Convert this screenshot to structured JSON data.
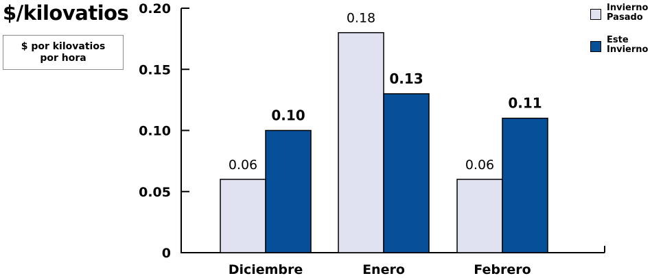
{
  "chart_data": {
    "type": "bar",
    "title": "$/kilovatios",
    "unit_label": [
      "$ por kilovatios",
      "por hora"
    ],
    "categories": [
      "Diciembre",
      "Enero",
      "Febrero"
    ],
    "series": [
      {
        "name": [
          "Invierno",
          "Pasado"
        ],
        "values": [
          0.06,
          0.18,
          0.06
        ],
        "labels": [
          "0.06",
          "0.18",
          "0.06"
        ],
        "color": "#e0e2f2",
        "label_style": "normal"
      },
      {
        "name": [
          "Este",
          "Invierno"
        ],
        "values": [
          0.1,
          0.13,
          0.11
        ],
        "labels": [
          "0.10",
          "0.13",
          "0.11"
        ],
        "color": "#06509a",
        "label_style": "bold"
      }
    ],
    "yticks": [
      0,
      0.05,
      0.1,
      0.15,
      0.2
    ],
    "ytick_labels": [
      "0",
      "0.05",
      "0.10",
      "0.15",
      "0.20"
    ],
    "ylim": [
      0,
      0.2
    ],
    "grid": false,
    "legend_position": "top-right"
  }
}
